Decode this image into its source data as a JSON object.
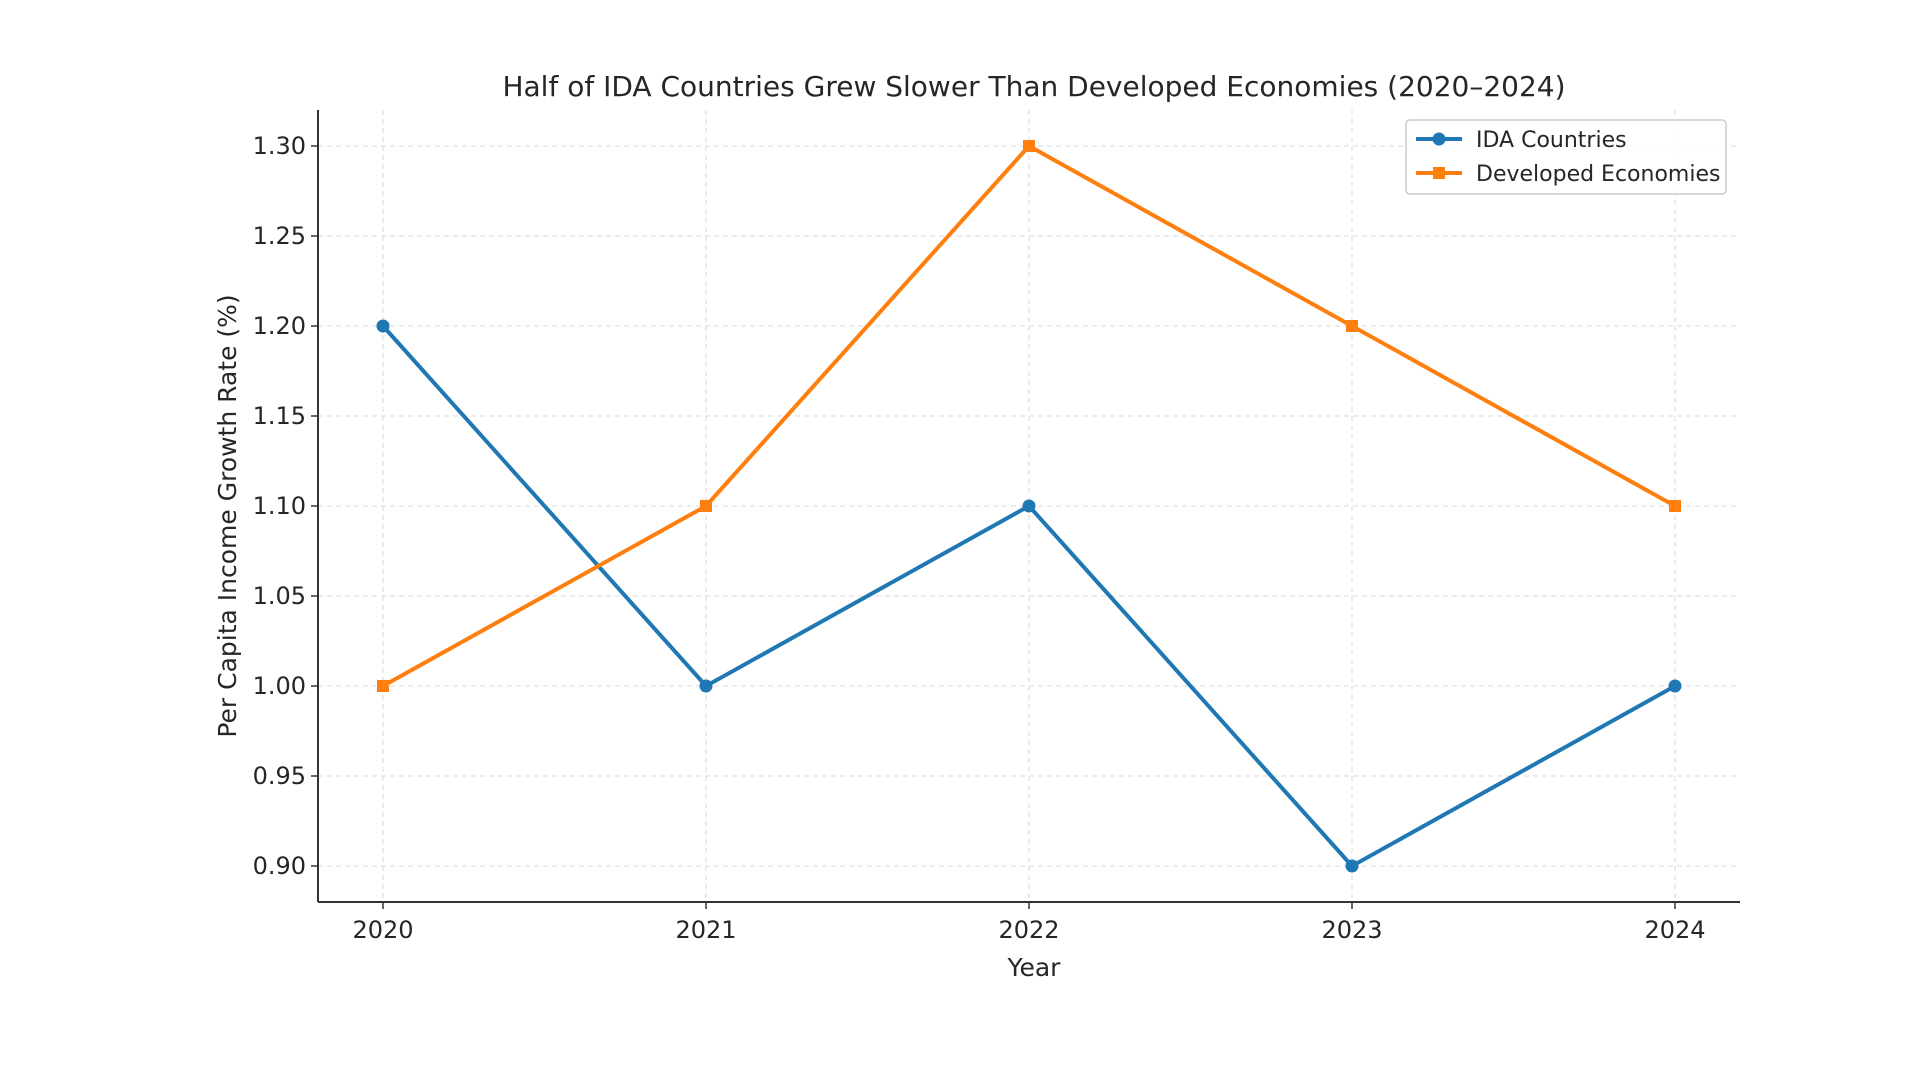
{
  "chart_data": {
    "type": "line",
    "title": "Half of IDA Countries Grew Slower Than Developed Economies (2020–2024)",
    "xlabel": "Year",
    "ylabel": "Per Capita Income Growth Rate (%)",
    "x": [
      "2020",
      "2021",
      "2022",
      "2023",
      "2024"
    ],
    "ylim": [
      0.88,
      1.32
    ],
    "yticks": [
      "0.90",
      "0.95",
      "1.00",
      "1.05",
      "1.10",
      "1.15",
      "1.20",
      "1.25",
      "1.30"
    ],
    "grid": true,
    "legend_position": "top-right",
    "series": [
      {
        "name": "IDA Countries",
        "values": [
          1.2,
          1.0,
          1.1,
          0.9,
          1.0
        ],
        "color": "#1f77b4",
        "marker": "circle"
      },
      {
        "name": "Developed Economies",
        "values": [
          1.0,
          1.1,
          1.3,
          1.2,
          1.1
        ],
        "color": "#ff7f0e",
        "marker": "square"
      }
    ]
  }
}
